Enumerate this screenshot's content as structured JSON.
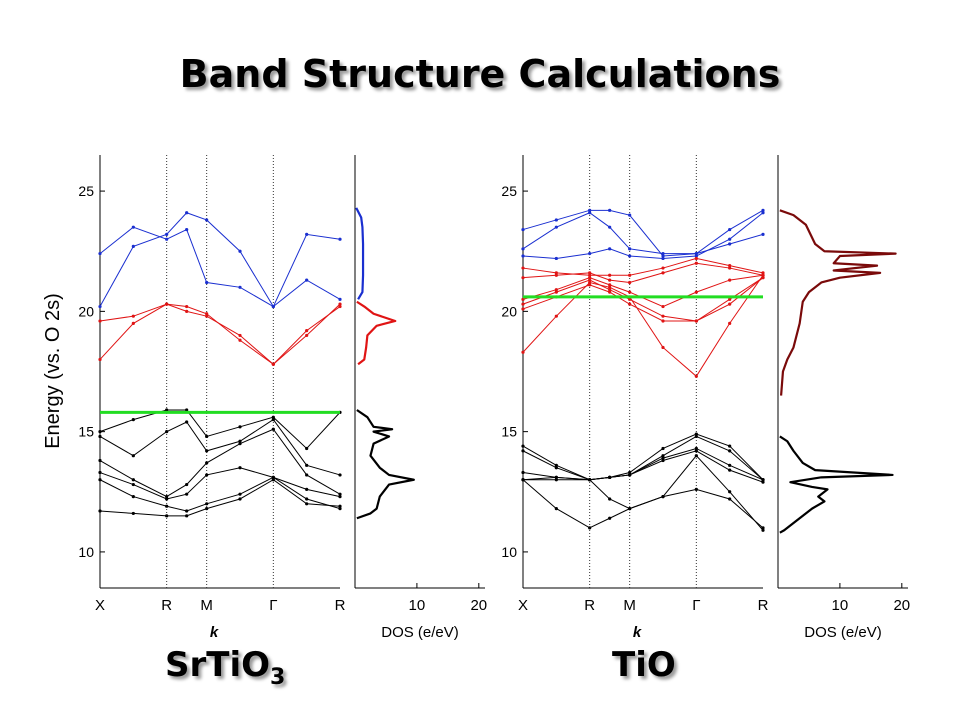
{
  "slide": {
    "title": "Band Structure Calculations",
    "label_left_main": "SrTiO",
    "label_left_sub": "3",
    "label_right": "TiO"
  },
  "colors": {
    "conduction_upper": "#1a2fd0",
    "conduction_lower": "#e01414",
    "valence": "#000000",
    "fermi": "#22dd22",
    "dos_tio": "#7a0a0a"
  },
  "chart_data": [
    {
      "type": "line",
      "name": "SrTiO3 band structure",
      "ylabel": "Energy (vs. O 2s)",
      "xlabel": "k",
      "x_ticks": [
        "X",
        "R",
        "M",
        "Γ",
        "R"
      ],
      "x_tick_positions": [
        0,
        1,
        1.6,
        2.6,
        3.6
      ],
      "ylim": [
        8.5,
        26.5
      ],
      "y_ticks": [
        10,
        15,
        20,
        25
      ],
      "fermi_level": 15.8,
      "series": [
        {
          "color": "blue",
          "x": [
            0,
            0.5,
            1,
            1.3,
            1.6,
            2.1,
            2.6,
            3.1,
            3.6
          ],
          "y": [
            22.4,
            23.5,
            23.0,
            23.4,
            21.2,
            21.0,
            20.2,
            23.2,
            23.0
          ]
        },
        {
          "color": "blue",
          "x": [
            0,
            0.5,
            1,
            1.3,
            1.6,
            2.1,
            2.6,
            3.1,
            3.6
          ],
          "y": [
            20.2,
            22.7,
            23.2,
            24.1,
            23.8,
            22.5,
            20.2,
            21.3,
            20.5
          ]
        },
        {
          "color": "red",
          "x": [
            0,
            0.5,
            1,
            1.3,
            1.6,
            2.1,
            2.6,
            3.1,
            3.6
          ],
          "y": [
            19.6,
            19.8,
            20.3,
            20.0,
            19.8,
            19.0,
            17.8,
            19.2,
            20.2
          ]
        },
        {
          "color": "red",
          "x": [
            0,
            0.5,
            1,
            1.3,
            1.6,
            2.1,
            2.6,
            3.1,
            3.6
          ],
          "y": [
            18.0,
            19.5,
            20.3,
            20.2,
            19.9,
            18.8,
            17.8,
            19.0,
            20.3
          ]
        },
        {
          "color": "black",
          "x": [
            0,
            0.5,
            1,
            1.3,
            1.6,
            2.1,
            2.6,
            3.1,
            3.6
          ],
          "y": [
            15.0,
            15.5,
            15.9,
            15.9,
            14.8,
            15.2,
            15.6,
            14.3,
            15.8
          ]
        },
        {
          "color": "black",
          "x": [
            0,
            0.5,
            1,
            1.3,
            1.6,
            2.1,
            2.6,
            3.1,
            3.6
          ],
          "y": [
            14.8,
            14.0,
            15.0,
            15.4,
            14.2,
            14.6,
            15.5,
            13.6,
            13.2
          ]
        },
        {
          "color": "black",
          "x": [
            0,
            0.5,
            1,
            1.3,
            1.6,
            2.1,
            2.6,
            3.1,
            3.6
          ],
          "y": [
            13.8,
            13.0,
            12.3,
            12.8,
            13.7,
            14.5,
            15.1,
            13.2,
            12.4
          ]
        },
        {
          "color": "black",
          "x": [
            0,
            0.5,
            1,
            1.3,
            1.6,
            2.1,
            2.6,
            3.1,
            3.6
          ],
          "y": [
            13.3,
            12.8,
            12.2,
            12.4,
            13.2,
            13.5,
            13.1,
            12.6,
            12.3
          ]
        },
        {
          "color": "black",
          "x": [
            0,
            0.5,
            1,
            1.3,
            1.6,
            2.1,
            2.6,
            3.1,
            3.6
          ],
          "y": [
            13.0,
            12.3,
            11.9,
            11.7,
            12.0,
            12.4,
            13.1,
            12.2,
            11.8
          ]
        },
        {
          "color": "black",
          "x": [
            0,
            0.5,
            1,
            1.3,
            1.6,
            2.1,
            2.6,
            3.1,
            3.6
          ],
          "y": [
            11.7,
            11.6,
            11.5,
            11.5,
            11.8,
            12.2,
            13.0,
            12.0,
            11.9
          ]
        }
      ]
    },
    {
      "type": "line",
      "name": "SrTiO3 DOS",
      "xlabel": "DOS (e/eV)",
      "x_ticks": [
        10,
        20
      ],
      "xlim": [
        0,
        21
      ],
      "segments": [
        {
          "color": "blue",
          "points": [
            [
              0.2,
              24.3
            ],
            [
              1.0,
              23.9
            ],
            [
              1.2,
              23.5
            ],
            [
              1.3,
              22.8
            ],
            [
              1.3,
              21.5
            ],
            [
              1.2,
              20.8
            ],
            [
              0.5,
              20.5
            ]
          ]
        },
        {
          "color": "red",
          "points": [
            [
              0.3,
              20.4
            ],
            [
              1.5,
              20.2
            ],
            [
              3.0,
              19.9
            ],
            [
              6.5,
              19.6
            ],
            [
              3.5,
              19.4
            ],
            [
              2.0,
              19.0
            ],
            [
              1.8,
              18.5
            ],
            [
              1.5,
              18.0
            ],
            [
              0.5,
              17.8
            ]
          ]
        },
        {
          "color": "black",
          "points": [
            [
              0.3,
              15.9
            ],
            [
              2.0,
              15.6
            ],
            [
              3.0,
              15.2
            ],
            [
              6.0,
              15.1
            ],
            [
              3.0,
              15.0
            ],
            [
              5.5,
              14.8
            ],
            [
              3.0,
              14.5
            ],
            [
              2.5,
              14.0
            ],
            [
              4.0,
              13.5
            ],
            [
              5.5,
              13.2
            ],
            [
              9.5,
              13.0
            ],
            [
              5.5,
              12.8
            ],
            [
              4.0,
              12.3
            ],
            [
              3.5,
              11.8
            ],
            [
              2.5,
              11.6
            ],
            [
              0.3,
              11.4
            ]
          ]
        }
      ]
    },
    {
      "type": "line",
      "name": "TiO band structure",
      "xlabel": "k",
      "x_ticks": [
        "X",
        "R",
        "M",
        "Γ",
        "R"
      ],
      "x_tick_positions": [
        0,
        1,
        1.6,
        2.6,
        3.6
      ],
      "ylim": [
        8.5,
        26.5
      ],
      "y_ticks": [
        10,
        15,
        20,
        25
      ],
      "fermi_level": 20.6,
      "series": [
        {
          "color": "blue",
          "x": [
            0,
            0.5,
            1,
            1.3,
            1.6,
            2.1,
            2.6,
            3.1,
            3.6
          ],
          "y": [
            23.4,
            23.8,
            24.2,
            24.2,
            24.0,
            22.3,
            22.4,
            23.4,
            24.2
          ]
        },
        {
          "color": "blue",
          "x": [
            0,
            0.5,
            1,
            1.3,
            1.6,
            2.1,
            2.6,
            3.1,
            3.6
          ],
          "y": [
            22.6,
            23.5,
            24.1,
            23.5,
            22.6,
            22.4,
            22.4,
            22.8,
            23.2
          ]
        },
        {
          "color": "blue",
          "x": [
            0,
            0.5,
            1,
            1.3,
            1.6,
            2.1,
            2.6,
            3.1,
            3.6
          ],
          "y": [
            22.3,
            22.2,
            22.4,
            22.6,
            22.3,
            22.2,
            22.3,
            23.0,
            24.1
          ]
        },
        {
          "color": "red",
          "x": [
            0,
            0.5,
            1,
            1.3,
            1.6,
            2.1,
            2.6,
            3.1,
            3.6
          ],
          "y": [
            21.8,
            21.6,
            21.5,
            21.5,
            21.5,
            21.8,
            22.2,
            21.9,
            21.6
          ]
        },
        {
          "color": "red",
          "x": [
            0,
            0.5,
            1,
            1.3,
            1.6,
            2.1,
            2.6,
            3.1,
            3.6
          ],
          "y": [
            21.4,
            21.5,
            21.6,
            21.3,
            21.2,
            21.6,
            22.0,
            21.8,
            21.5
          ]
        },
        {
          "color": "red",
          "x": [
            0,
            0.5,
            1,
            1.3,
            1.6,
            2.1,
            2.6,
            3.1,
            3.6
          ],
          "y": [
            20.5,
            20.9,
            21.4,
            21.1,
            20.8,
            20.2,
            20.8,
            21.3,
            21.5
          ]
        },
        {
          "color": "red",
          "x": [
            0,
            0.5,
            1,
            1.3,
            1.6,
            2.1,
            2.6,
            3.1,
            3.6
          ],
          "y": [
            20.3,
            20.8,
            21.3,
            20.9,
            20.5,
            19.8,
            19.6,
            20.5,
            21.4
          ]
        },
        {
          "color": "red",
          "x": [
            0,
            0.5,
            1,
            1.3,
            1.6,
            2.1,
            2.6,
            3.1,
            3.6
          ],
          "y": [
            20.1,
            20.6,
            21.1,
            20.8,
            20.3,
            19.6,
            19.6,
            20.3,
            21.4
          ]
        },
        {
          "color": "red",
          "x": [
            0,
            0.5,
            1,
            1.3,
            1.6,
            2.1,
            2.6,
            3.1,
            3.6
          ],
          "y": [
            18.3,
            19.8,
            21.2,
            21.0,
            20.6,
            18.5,
            17.3,
            19.5,
            21.5
          ]
        },
        {
          "color": "black",
          "x": [
            0,
            0.5,
            1,
            1.3,
            1.6,
            2.1,
            2.6,
            3.1,
            3.6
          ],
          "y": [
            14.4,
            13.6,
            13.0,
            13.1,
            13.3,
            14.3,
            14.9,
            14.4,
            13.0
          ]
        },
        {
          "color": "black",
          "x": [
            0,
            0.5,
            1,
            1.3,
            1.6,
            2.1,
            2.6,
            3.1,
            3.6
          ],
          "y": [
            14.2,
            13.5,
            13.0,
            13.1,
            13.2,
            14.0,
            14.8,
            14.2,
            13.0
          ]
        },
        {
          "color": "black",
          "x": [
            0,
            0.5,
            1,
            1.3,
            1.6,
            2.1,
            2.6,
            3.1,
            3.6
          ],
          "y": [
            13.3,
            13.1,
            13.0,
            13.1,
            13.2,
            13.9,
            14.3,
            13.6,
            13.0
          ]
        },
        {
          "color": "black",
          "x": [
            0,
            0.5,
            1,
            1.3,
            1.6,
            2.1,
            2.6,
            3.1,
            3.6
          ],
          "y": [
            13.0,
            13.1,
            13.0,
            13.1,
            13.2,
            13.8,
            14.2,
            13.4,
            12.9
          ]
        },
        {
          "color": "black",
          "x": [
            0,
            0.5,
            1,
            1.3,
            1.6,
            2.1,
            2.6,
            3.1,
            3.6
          ],
          "y": [
            13.0,
            13.0,
            13.0,
            12.2,
            11.8,
            12.3,
            12.6,
            12.2,
            11.0
          ]
        },
        {
          "color": "black",
          "x": [
            0,
            0.5,
            1,
            1.3,
            1.6,
            2.1,
            2.6,
            3.1,
            3.6
          ],
          "y": [
            13.0,
            11.8,
            11.0,
            11.4,
            11.8,
            12.3,
            14.0,
            12.5,
            10.9
          ]
        }
      ]
    },
    {
      "type": "line",
      "name": "TiO DOS",
      "xlabel": "DOS (e/eV)",
      "x_ticks": [
        10,
        20
      ],
      "xlim": [
        0,
        21
      ],
      "segments": [
        {
          "color": "dark-red",
          "points": [
            [
              0.3,
              24.2
            ],
            [
              2.5,
              24.0
            ],
            [
              4.5,
              23.6
            ],
            [
              6.0,
              22.8
            ],
            [
              7.5,
              22.5
            ],
            [
              19.0,
              22.4
            ],
            [
              10.0,
              22.3
            ],
            [
              9.0,
              22.0
            ],
            [
              16.0,
              21.9
            ],
            [
              9.0,
              21.7
            ],
            [
              16.5,
              21.6
            ],
            [
              10.0,
              21.4
            ],
            [
              7.0,
              21.2
            ],
            [
              5.0,
              20.8
            ],
            [
              4.0,
              20.4
            ],
            [
              3.5,
              19.5
            ],
            [
              2.5,
              18.5
            ],
            [
              1.5,
              18.0
            ],
            [
              0.8,
              17.5
            ],
            [
              0.5,
              16.5
            ]
          ]
        },
        {
          "color": "black",
          "points": [
            [
              0.3,
              14.8
            ],
            [
              1.5,
              14.6
            ],
            [
              2.5,
              14.2
            ],
            [
              4.0,
              13.7
            ],
            [
              6.0,
              13.4
            ],
            [
              18.5,
              13.2
            ],
            [
              7.0,
              13.1
            ],
            [
              2.0,
              12.9
            ],
            [
              5.5,
              12.7
            ],
            [
              8.0,
              12.6
            ],
            [
              6.5,
              12.3
            ],
            [
              7.5,
              12.1
            ],
            [
              5.5,
              11.8
            ],
            [
              3.0,
              11.3
            ],
            [
              1.0,
              10.9
            ],
            [
              0.3,
              10.8
            ]
          ]
        }
      ]
    }
  ]
}
